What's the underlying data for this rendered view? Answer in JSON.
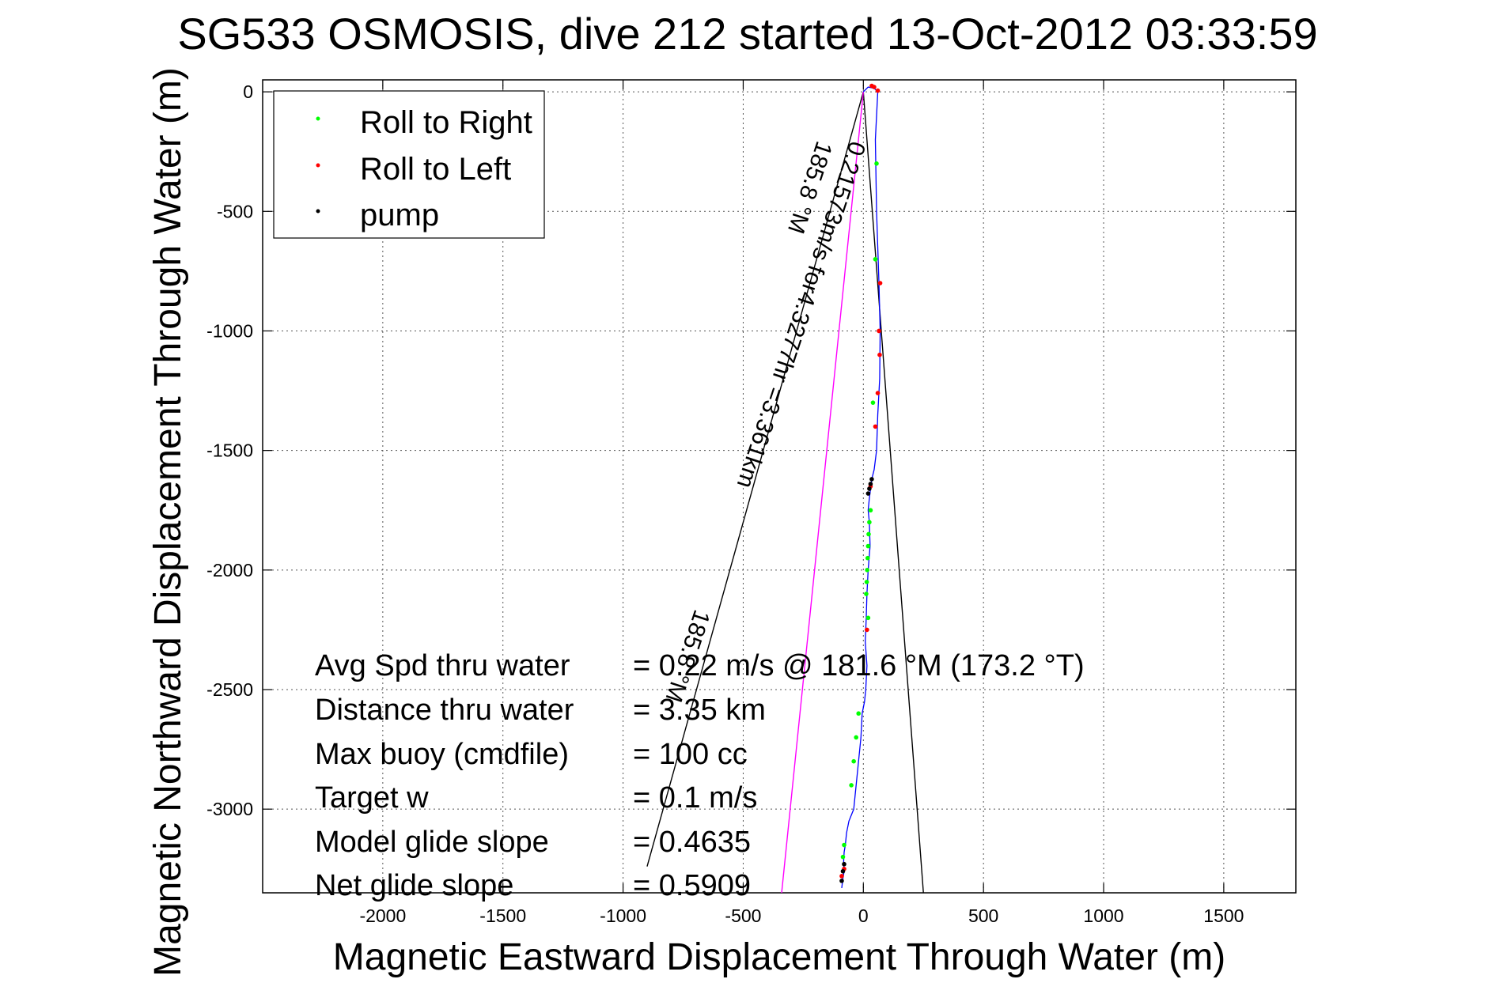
{
  "chart_data": {
    "type": "scatter",
    "title": "SG533 OSMOSIS, dive 212 started 13-Oct-2012 03:33:59",
    "xlabel": "Magnetic Eastward Displacement Through Water (m)",
    "ylabel": "Magnetic Northward Displacement Through Water (m)",
    "xlim": [
      -2500,
      1800
    ],
    "ylim": [
      -3350,
      50
    ],
    "xticks": [
      -2000,
      -1500,
      -1000,
      -500,
      0,
      500,
      1000,
      1500
    ],
    "yticks": [
      0,
      -500,
      -1000,
      -1500,
      -2000,
      -2500,
      -3000
    ],
    "grid": true,
    "legend": {
      "placement": "top-left",
      "entries": [
        {
          "label": "Roll to Right",
          "color": "#00ff00"
        },
        {
          "label": "Roll to Left",
          "color": "#ff0000"
        },
        {
          "label": "pump",
          "color": "#000000"
        }
      ]
    },
    "track": {
      "color": "#0000ff",
      "x": [
        0,
        20,
        45,
        60,
        50,
        55,
        65,
        70,
        68,
        60,
        55,
        45,
        35,
        30,
        25,
        20,
        25,
        28,
        20,
        15,
        12,
        10,
        8,
        15,
        10,
        5,
        -5,
        -10,
        -20,
        -30,
        -40,
        -60,
        -70,
        -75,
        -80,
        -82,
        -80,
        -85,
        -90
      ],
      "y": [
        0,
        20,
        15,
        0,
        -200,
        -500,
        -800,
        -1000,
        -1200,
        -1350,
        -1500,
        -1580,
        -1620,
        -1660,
        -1700,
        -1750,
        -1800,
        -1900,
        -2000,
        -2100,
        -2200,
        -2250,
        -2300,
        -2400,
        -2500,
        -2550,
        -2600,
        -2700,
        -2800,
        -2900,
        -3000,
        -3050,
        -3100,
        -3150,
        -3180,
        -3220,
        -3260,
        -3290,
        -3330
      ]
    },
    "points": {
      "roll_right": {
        "x": [
          55,
          50,
          40,
          30,
          25,
          22,
          20,
          18,
          16,
          14,
          12,
          20,
          -20,
          -30,
          -40,
          -50,
          -80,
          -85
        ],
        "y": [
          -300,
          -700,
          -1300,
          -1750,
          -1800,
          -1850,
          -1900,
          -1950,
          -2000,
          -2050,
          -2100,
          -2200,
          -2600,
          -2700,
          -2800,
          -2900,
          -3150,
          -3200
        ]
      },
      "roll_left": {
        "x": [
          35,
          45,
          60,
          70,
          65,
          68,
          60,
          50,
          30,
          15,
          -80,
          -90
        ],
        "y": [
          25,
          20,
          5,
          -800,
          -1000,
          -1100,
          -1260,
          -1400,
          -1650,
          -2250,
          -3250,
          -3280
        ]
      },
      "pump": {
        "x": [
          35,
          30,
          25,
          20,
          -80,
          -85,
          -90
        ],
        "y": [
          -1620,
          -1640,
          -1660,
          -1680,
          -3230,
          -3260,
          -3300
        ]
      }
    },
    "heading_lines": {
      "color": "#000000",
      "line1": {
        "x": [
          0,
          -900
        ],
        "y": [
          0,
          -3240
        ],
        "label": "185.8 °M"
      },
      "line2": {
        "x": [
          0,
          250
        ],
        "y": [
          0,
          -3350
        ],
        "label": "185.8 °M"
      }
    },
    "current_line": {
      "color": "#ff00ff",
      "x": [
        0,
        -340
      ],
      "y": [
        0,
        -3350
      ],
      "label": "0.21573m/s for4.3277hr =3.361km"
    },
    "annotations": [
      {
        "label": "Avg Spd thru water",
        "value": "=  0.22 m/s @ 181.6 °M (173.2 °T)"
      },
      {
        "label": "Distance thru water",
        "value": "=  3.35 km"
      },
      {
        "label": "Max buoy (cmdfile)",
        "value": "= 100 cc"
      },
      {
        "label": "Target w",
        "value": "= 0.1 m/s"
      },
      {
        "label": "Model glide slope",
        "value": "= 0.4635"
      },
      {
        "label": "Net glide slope",
        "value": "= 0.5909"
      }
    ]
  }
}
